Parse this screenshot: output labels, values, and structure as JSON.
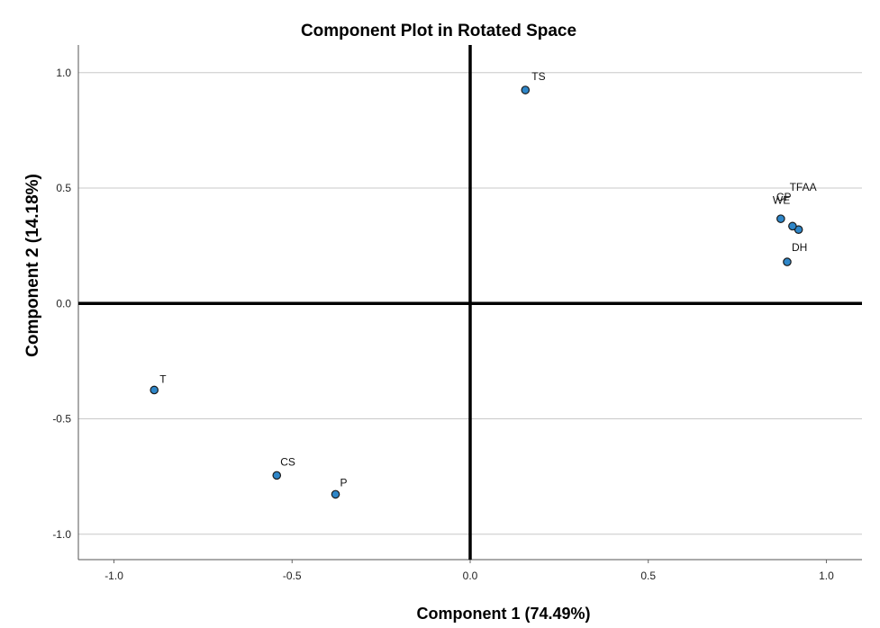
{
  "chart_data": {
    "type": "scatter",
    "title": "Component Plot in Rotated Space",
    "xlabel": "Component 1 (74.49%)",
    "ylabel": "Component 2 (14.18%)",
    "xlim": [
      -1.1,
      1.1
    ],
    "ylim": [
      -1.11,
      1.12
    ],
    "xticks": [
      "-1.0",
      "-0.5",
      "0.0",
      "0.5",
      "1.0"
    ],
    "yticks": [
      "1.0",
      "0.5",
      "0.0",
      "-0.5",
      "-1.0"
    ],
    "grid": "horizontal",
    "points": [
      {
        "label": "TS",
        "x": 0.155,
        "y": 0.925
      },
      {
        "label": "TFAA",
        "x": 0.922,
        "y": 0.32
      },
      {
        "label": "WE",
        "x": 0.905,
        "y": 0.335
      },
      {
        "label": "CP",
        "x": 0.872,
        "y": 0.367
      },
      {
        "label": "DH",
        "x": 0.89,
        "y": 0.18
      },
      {
        "label": "T",
        "x": -0.887,
        "y": -0.375
      },
      {
        "label": "CS",
        "x": -0.543,
        "y": -0.745
      },
      {
        "label": "P",
        "x": -0.378,
        "y": -0.827
      }
    ],
    "colors": {
      "marker_fill": "#2e86c8",
      "marker_stroke": "#1a1a1a",
      "grid": "#c8c8c8",
      "axis": "#000000"
    }
  }
}
